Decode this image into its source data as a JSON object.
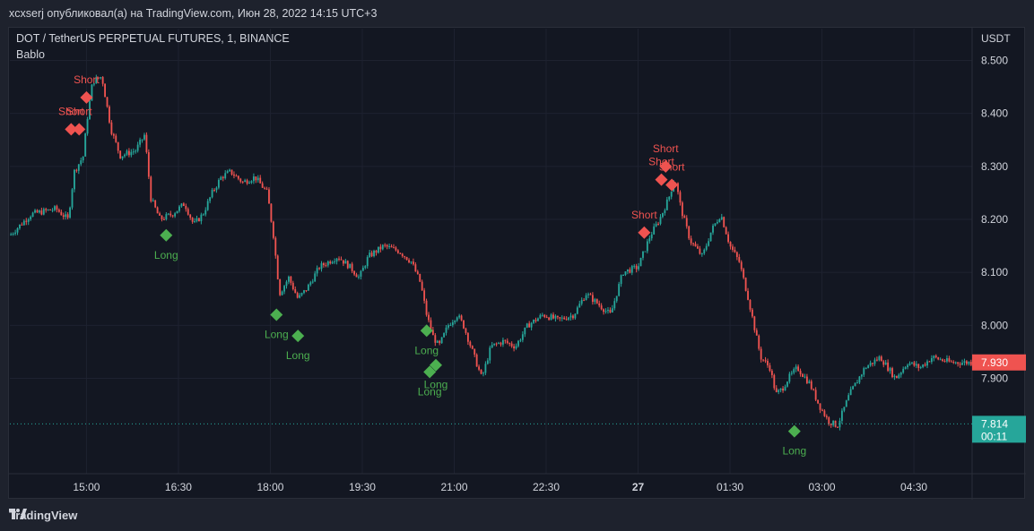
{
  "header": {
    "publish_text": "xcxserj опубликовал(а) на TradingView.com, Июн 28, 2022 14:15 UTC+3"
  },
  "chart": {
    "symbol_line": "DOT / TetherUS PERPETUAL FUTURES, 1, BINANCE",
    "indicator": "Bablo",
    "currency": "USDT"
  },
  "footer": {
    "brand": "TradingView"
  },
  "colors": {
    "up": "#26a69a",
    "down": "#ef5350",
    "long": "#4caf50",
    "short": "#ef5350",
    "background": "#131722",
    "grid": "#1e2230",
    "text": "#d1d4dc"
  },
  "chart_data": {
    "type": "candlestick",
    "y_axis": {
      "unit": "USDT",
      "ticks": [
        "8.500",
        "8.400",
        "8.300",
        "8.200",
        "8.100",
        "8.000",
        "7.900"
      ],
      "ylim": [
        7.72,
        8.56
      ]
    },
    "x_axis": {
      "ticks": [
        "15:00",
        "16:30",
        "18:00",
        "19:30",
        "21:00",
        "22:30",
        "27",
        "01:30",
        "03:00",
        "04:30"
      ],
      "range_hours": [
        13.75,
        29.45
      ]
    },
    "price_labels": [
      {
        "value": "7.930",
        "kind": "last-price",
        "color": "#ef5350"
      },
      {
        "value": "7.814",
        "kind": "line",
        "color": "#26a69a",
        "countdown": "00:11"
      }
    ],
    "series": [
      {
        "name": "price",
        "points": [
          [
            13.75,
            8.17
          ],
          [
            14.1,
            8.21
          ],
          [
            14.5,
            8.22
          ],
          [
            14.7,
            8.2
          ],
          [
            14.8,
            8.29
          ],
          [
            14.95,
            8.32
          ],
          [
            15.0,
            8.38
          ],
          [
            15.1,
            8.46
          ],
          [
            15.25,
            8.47
          ],
          [
            15.4,
            8.37
          ],
          [
            15.55,
            8.32
          ],
          [
            15.8,
            8.33
          ],
          [
            15.95,
            8.36
          ],
          [
            16.05,
            8.24
          ],
          [
            16.2,
            8.2
          ],
          [
            16.4,
            8.21
          ],
          [
            16.6,
            8.23
          ],
          [
            16.75,
            8.19
          ],
          [
            16.9,
            8.21
          ],
          [
            17.05,
            8.25
          ],
          [
            17.2,
            8.28
          ],
          [
            17.35,
            8.29
          ],
          [
            17.55,
            8.27
          ],
          [
            17.75,
            8.28
          ],
          [
            17.95,
            8.25
          ],
          [
            18.05,
            8.17
          ],
          [
            18.15,
            8.06
          ],
          [
            18.3,
            8.09
          ],
          [
            18.45,
            8.05
          ],
          [
            18.6,
            8.07
          ],
          [
            18.8,
            8.11
          ],
          [
            19.1,
            8.13
          ],
          [
            19.3,
            8.11
          ],
          [
            19.45,
            8.09
          ],
          [
            19.6,
            8.13
          ],
          [
            19.85,
            8.15
          ],
          [
            20.1,
            8.14
          ],
          [
            20.3,
            8.12
          ],
          [
            20.45,
            8.08
          ],
          [
            20.55,
            8.02
          ],
          [
            20.65,
            7.98
          ],
          [
            20.75,
            7.96
          ],
          [
            20.9,
            8.0
          ],
          [
            21.05,
            8.02
          ],
          [
            21.15,
            8.0
          ],
          [
            21.3,
            7.95
          ],
          [
            21.45,
            7.9
          ],
          [
            21.6,
            7.96
          ],
          [
            21.8,
            7.97
          ],
          [
            22.0,
            7.96
          ],
          [
            22.2,
            8.0
          ],
          [
            22.45,
            8.02
          ],
          [
            22.7,
            8.01
          ],
          [
            22.95,
            8.02
          ],
          [
            23.15,
            8.06
          ],
          [
            23.35,
            8.04
          ],
          [
            23.55,
            8.02
          ],
          [
            23.75,
            8.1
          ],
          [
            24.0,
            8.11
          ],
          [
            24.2,
            8.17
          ],
          [
            24.35,
            8.2
          ],
          [
            24.5,
            8.24
          ],
          [
            24.6,
            8.28
          ],
          [
            24.7,
            8.22
          ],
          [
            24.85,
            8.16
          ],
          [
            25.05,
            8.13
          ],
          [
            25.2,
            8.18
          ],
          [
            25.35,
            8.21
          ],
          [
            25.5,
            8.15
          ],
          [
            25.65,
            8.12
          ],
          [
            25.8,
            8.05
          ],
          [
            26.0,
            7.94
          ],
          [
            26.15,
            7.92
          ],
          [
            26.25,
            7.87
          ],
          [
            26.35,
            7.88
          ],
          [
            26.45,
            7.9
          ],
          [
            26.6,
            7.92
          ],
          [
            26.8,
            7.89
          ],
          [
            26.95,
            7.85
          ],
          [
            27.1,
            7.82
          ],
          [
            27.25,
            7.81
          ],
          [
            27.45,
            7.87
          ],
          [
            27.7,
            7.92
          ],
          [
            27.95,
            7.94
          ],
          [
            28.2,
            7.9
          ],
          [
            28.4,
            7.93
          ],
          [
            28.6,
            7.92
          ],
          [
            28.8,
            7.94
          ],
          [
            29.1,
            7.93
          ],
          [
            29.45,
            7.93
          ]
        ]
      }
    ],
    "signals": [
      {
        "label": "Short",
        "x": 15.0,
        "y": 8.43
      },
      {
        "label": "Short",
        "x": 14.75,
        "y": 8.37
      },
      {
        "label": "Short",
        "x": 14.88,
        "y": 8.37
      },
      {
        "label": "Long",
        "x": 16.3,
        "y": 8.17
      },
      {
        "label": "Long",
        "x": 18.1,
        "y": 8.02
      },
      {
        "label": "Long",
        "x": 18.45,
        "y": 7.98
      },
      {
        "label": "Long",
        "x": 20.55,
        "y": 7.99
      },
      {
        "label": "Long",
        "x": 20.7,
        "y": 7.925
      },
      {
        "label": "Long",
        "x": 20.6,
        "y": 7.912
      },
      {
        "label": "Short",
        "x": 24.45,
        "y": 8.3
      },
      {
        "label": "Short",
        "x": 24.38,
        "y": 8.275
      },
      {
        "label": "Short",
        "x": 24.55,
        "y": 8.265
      },
      {
        "label": "Short",
        "x": 24.1,
        "y": 8.175
      },
      {
        "label": "Long",
        "x": 26.55,
        "y": 7.8
      }
    ]
  }
}
